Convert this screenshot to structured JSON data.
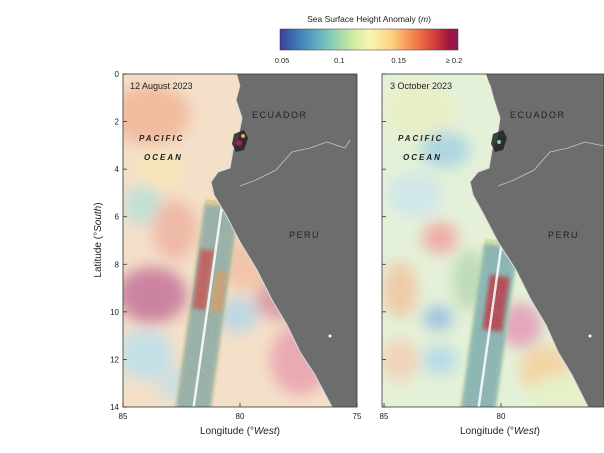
{
  "colorbar": {
    "title": "Sea Surface Height Anomaly (m)",
    "title_text": "Sea Surface Height Anomaly (",
    "title_unit": "m",
    "title_close": ")",
    "ticks": [
      "0.05",
      "0.1",
      "0.15",
      "≥ 0.2"
    ],
    "tick_values": [
      0.05,
      0.1,
      0.15,
      0.2
    ],
    "range": [
      0.05,
      0.2
    ],
    "colors": [
      "#3b3f9c",
      "#3f86bd",
      "#78c3c0",
      "#c9e99e",
      "#f6f7b5",
      "#fed484",
      "#f58a4d",
      "#d8433b",
      "#a1163f",
      "#8e1a55"
    ]
  },
  "panels": [
    {
      "date": "12 August 2023",
      "country_labels": [
        "ECUADOR",
        "PERU"
      ],
      "ocean_label": [
        "PACIFIC",
        "OCEAN"
      ]
    },
    {
      "date": "3 October 2023",
      "country_labels": [
        "ECUADOR",
        "PERU"
      ],
      "ocean_label": [
        "PACIFIC",
        "OCEAN"
      ]
    }
  ],
  "axes": {
    "ylabel_prefix": "Latitude (°",
    "ylabel_unit": "South",
    "ylabel_suffix": ")",
    "xlabel_prefix": "Longitude (°",
    "xlabel_unit": "West",
    "xlabel_suffix": ")",
    "y_ticks": [
      0,
      2,
      4,
      6,
      8,
      10,
      12,
      14
    ],
    "left_x_ticks": [
      85,
      80,
      75
    ],
    "right_x_ticks": [
      85,
      80
    ]
  },
  "colors": {
    "land": "#6d6d6d",
    "coast": "#dcdcdc",
    "frame": "#333333"
  }
}
